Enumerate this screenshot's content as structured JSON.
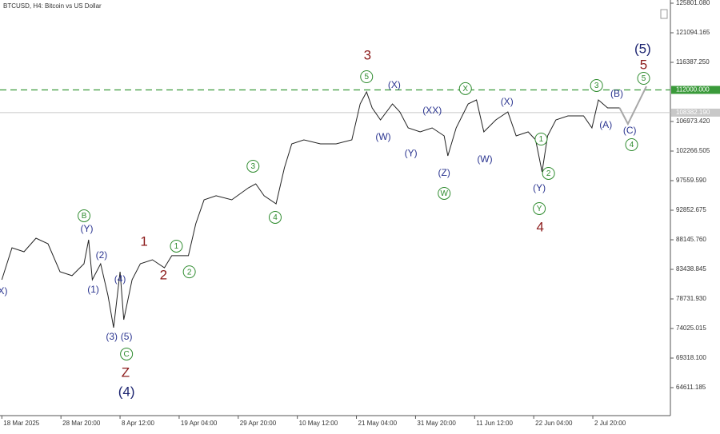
{
  "chart_data": {
    "type": "line",
    "title": "BTCUSD, H4:  Bitcoin vs US Dollar",
    "xlim": [
      -2,
      724
    ],
    "ylim": [
      60160,
      126310
    ],
    "xticks": [
      {
        "value": 0,
        "label": "18 Mar 2025"
      },
      {
        "value": 64,
        "label": "28 Mar 20:00"
      },
      {
        "value": 128,
        "label": "8 Apr 12:00"
      },
      {
        "value": 192,
        "label": "19 Apr 04:00"
      },
      {
        "value": 256,
        "label": "29 Apr 20:00"
      },
      {
        "value": 320,
        "label": "10 May 12:00"
      },
      {
        "value": 384,
        "label": "21 May 04:00"
      },
      {
        "value": 448,
        "label": "31 May 20:00"
      },
      {
        "value": 512,
        "label": "11 Jun 12:00"
      },
      {
        "value": 576,
        "label": "22 Jun 04:00"
      },
      {
        "value": 640,
        "label": "2 Jul 20:00"
      }
    ],
    "yticks": [
      {
        "value": 125801.08,
        "label": "125801.080"
      },
      121094.165,
      {
        "value": 116387.25,
        "label": "116387.250"
      },
      {
        "value": 106973.42,
        "label": "106973.420"
      },
      102266.505,
      {
        "value": 97559.59,
        "label": "97559.590"
      },
      92852.675,
      {
        "value": 88145.76,
        "label": "88145.760"
      },
      83438.845,
      {
        "value": 78731.93,
        "label": "78731.930"
      },
      74025.015,
      {
        "value": 69318.1,
        "label": "69318.100"
      },
      64611.185
    ],
    "series": [
      {
        "name": "BTCUSD",
        "color": "#222222",
        "x": [
          0,
          11,
          24,
          37,
          50,
          63,
          76,
          89,
          94,
          98,
          107,
          115,
          121,
          128,
          132,
          141,
          150,
          163,
          176,
          184,
          202,
          210,
          219,
          232,
          249,
          267,
          275,
          284,
          297,
          306,
          314,
          327,
          345,
          362,
          379,
          388,
          395,
          401,
          410,
          423,
          431,
          440,
          453,
          466,
          479,
          483,
          492,
          505,
          514,
          522,
          535,
          548,
          557,
          570,
          578,
          585,
          591,
          600,
          613,
          630,
          639,
          646,
          656,
          669
        ],
        "values": [
          81790,
          86880,
          86240,
          88400,
          87510,
          83060,
          82430,
          84330,
          88150,
          81790,
          84330,
          79250,
          74160,
          83060,
          75430,
          81790,
          84330,
          84970,
          83700,
          85610,
          85610,
          90690,
          94510,
          95150,
          94510,
          96420,
          97050,
          95150,
          93870,
          99600,
          103410,
          104050,
          103410,
          103410,
          104050,
          109770,
          111680,
          109140,
          107230,
          109770,
          108500,
          105960,
          105320,
          105960,
          104690,
          101510,
          105960,
          109770,
          110410,
          105320,
          107230,
          108500,
          104690,
          105320,
          104050,
          98960,
          104690,
          107230,
          107870,
          107870,
          105960,
          110410,
          109140,
          109140
        ]
      },
      {
        "name": "Projection",
        "color": "#a8a8a8",
        "x": [
          669,
          678,
          698
        ],
        "values": [
          109140,
          106590,
          112570
        ]
      }
    ],
    "levels": [
      {
        "value": 112000,
        "label": "112000.000",
        "color": "#3a9a3a",
        "dashed": true
      },
      {
        "value": 108382.19,
        "label": "108382.190",
        "color": "#c8c8c8",
        "dashed": false
      }
    ],
    "annotation_colors": {
      "blue": "#2b3590",
      "green": "#2e8b2e",
      "red": "#8b1a1a",
      "navy": "#1c2470"
    },
    "annotations": [
      {
        "text": "X)",
        "x": 1,
        "y": 79882,
        "color": "blue"
      },
      {
        "text": "B",
        "x": 89,
        "y": 91966,
        "color": "green",
        "circled": true
      },
      {
        "text": "(Y)",
        "x": 92,
        "y": 89803,
        "color": "blue"
      },
      {
        "text": "(2)",
        "x": 108,
        "y": 85606,
        "color": "blue"
      },
      {
        "text": "(1)",
        "x": 99,
        "y": 80136,
        "color": "blue"
      },
      {
        "text": "(4)",
        "x": 128,
        "y": 81790,
        "color": "blue"
      },
      {
        "text": "(3)",
        "x": 119,
        "y": 72631,
        "color": "blue"
      },
      {
        "text": "(5)",
        "x": 135,
        "y": 72631,
        "color": "blue"
      },
      {
        "text": "C",
        "x": 135,
        "y": 69960,
        "color": "green",
        "circled": true
      },
      {
        "text": "Z",
        "x": 134,
        "y": 66907,
        "color": "red",
        "large": true
      },
      {
        "text": "(4)",
        "x": 135,
        "y": 63854,
        "color": "navy",
        "large": true
      },
      {
        "text": "1",
        "x": 154,
        "y": 87768,
        "color": "red",
        "large": true
      },
      {
        "text": "1",
        "x": 189,
        "y": 87132,
        "color": "green",
        "circled": true
      },
      {
        "text": "2",
        "x": 175,
        "y": 82407,
        "color": "red",
        "large": true
      },
      {
        "text": "2",
        "x": 203,
        "y": 83043,
        "color": "green",
        "circled": true
      },
      {
        "text": "3",
        "x": 272,
        "y": 99853,
        "color": "green",
        "circled": true
      },
      {
        "text": "4",
        "x": 296,
        "y": 91712,
        "color": "green",
        "circled": true
      },
      {
        "text": "3",
        "x": 396,
        "y": 117406,
        "color": "red",
        "large": true
      },
      {
        "text": "5",
        "x": 395,
        "y": 114099,
        "color": "green",
        "circled": true
      },
      {
        "text": "(X)",
        "x": 425,
        "y": 112700,
        "color": "blue"
      },
      {
        "text": "(W)",
        "x": 413,
        "y": 104431,
        "color": "blue"
      },
      {
        "text": "(XX)",
        "x": 466,
        "y": 108629,
        "color": "blue"
      },
      {
        "text": "(Y)",
        "x": 443,
        "y": 101842,
        "color": "blue"
      },
      {
        "text": "(Z)",
        "x": 479,
        "y": 98707,
        "color": "blue"
      },
      {
        "text": "W",
        "x": 479,
        "y": 95527,
        "color": "green",
        "circled": true
      },
      {
        "text": "X",
        "x": 502,
        "y": 112208,
        "color": "green",
        "circled": true
      },
      {
        "text": "(X)",
        "x": 547,
        "y": 110046,
        "color": "blue"
      },
      {
        "text": "(W)",
        "x": 523,
        "y": 100860,
        "color": "blue"
      },
      {
        "text": "1",
        "x": 584,
        "y": 104176,
        "color": "green",
        "circled": true
      },
      {
        "text": "2",
        "x": 592,
        "y": 98707,
        "color": "green",
        "circled": true
      },
      {
        "text": "(Y)",
        "x": 582,
        "y": 96290,
        "color": "blue"
      },
      {
        "text": "Y",
        "x": 582,
        "y": 93110,
        "color": "green",
        "circled": true
      },
      {
        "text": "4",
        "x": 583,
        "y": 90058,
        "color": "red",
        "large": true
      },
      {
        "text": "3",
        "x": 644,
        "y": 112700,
        "color": "green",
        "circled": true
      },
      {
        "text": "(B)",
        "x": 666,
        "y": 111301,
        "color": "blue"
      },
      {
        "text": "(A)",
        "x": 654,
        "y": 106339,
        "color": "blue"
      },
      {
        "text": "(C)",
        "x": 680,
        "y": 105448,
        "color": "blue"
      },
      {
        "text": "4",
        "x": 682,
        "y": 103286,
        "color": "green",
        "circled": true
      },
      {
        "text": "5",
        "x": 695,
        "y": 113844,
        "color": "green",
        "circled": true
      },
      {
        "text": "5",
        "x": 695,
        "y": 115880,
        "color": "red",
        "large": true
      },
      {
        "text": "(5)",
        "x": 694,
        "y": 118424,
        "color": "navy",
        "large": true
      }
    ]
  }
}
